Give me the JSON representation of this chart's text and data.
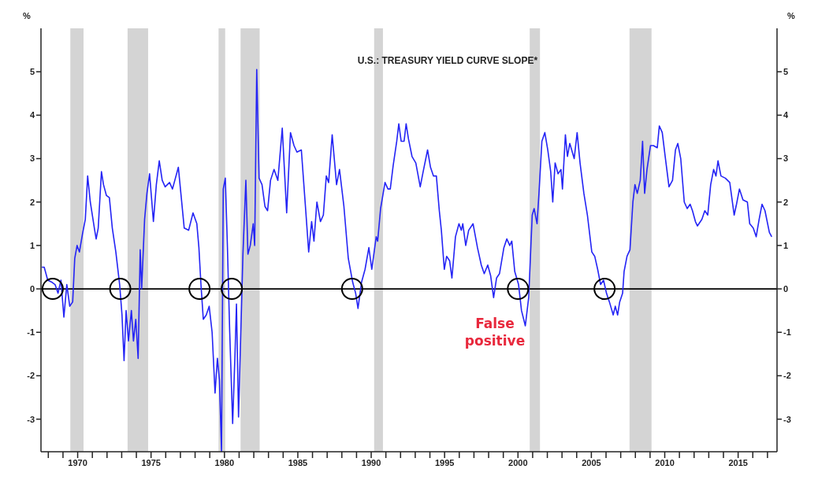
{
  "chart_data": {
    "type": "line",
    "title": "U.S.: TREASURY YIELD CURVE SLOPE*",
    "ylabel": "%",
    "y2label": "%",
    "xlim": [
      1967.5,
      2017.65
    ],
    "xticks": [
      {
        "value": 1968,
        "label": null
      },
      {
        "value": 1969,
        "label": null
      },
      1970,
      {
        "value": 1971,
        "label": null
      },
      {
        "value": 1972,
        "label": null
      },
      {
        "value": 1973,
        "label": null
      },
      {
        "value": 1974,
        "label": null
      },
      1975,
      {
        "value": 1976,
        "label": null
      },
      {
        "value": 1977,
        "label": null
      },
      {
        "value": 1978,
        "label": null
      },
      {
        "value": 1979,
        "label": null
      },
      1980,
      {
        "value": 1981,
        "label": null
      },
      {
        "value": 1982,
        "label": null
      },
      {
        "value": 1983,
        "label": null
      },
      {
        "value": 1984,
        "label": null
      },
      1985,
      {
        "value": 1986,
        "label": null
      },
      {
        "value": 1987,
        "label": null
      },
      {
        "value": 1988,
        "label": null
      },
      {
        "value": 1989,
        "label": null
      },
      1990,
      {
        "value": 1991,
        "label": null
      },
      {
        "value": 1992,
        "label": null
      },
      {
        "value": 1993,
        "label": null
      },
      {
        "value": 1994,
        "label": null
      },
      1995,
      {
        "value": 1996,
        "label": null
      },
      {
        "value": 1997,
        "label": null
      },
      {
        "value": 1998,
        "label": null
      },
      {
        "value": 1999,
        "label": null
      },
      2000,
      {
        "value": 2001,
        "label": null
      },
      {
        "value": 2002,
        "label": null
      },
      {
        "value": 2003,
        "label": null
      },
      {
        "value": 2004,
        "label": null
      },
      2005,
      {
        "value": 2006,
        "label": null
      },
      {
        "value": 2007,
        "label": null
      },
      {
        "value": 2008,
        "label": null
      },
      {
        "value": 2009,
        "label": null
      },
      2010,
      {
        "value": 2011,
        "label": null
      },
      {
        "value": 2012,
        "label": null
      },
      {
        "value": 2013,
        "label": null
      },
      {
        "value": 2014,
        "label": null
      },
      2015,
      {
        "value": 2016,
        "label": null
      },
      {
        "value": 2017,
        "label": null
      }
    ],
    "ylim": [
      -3.75,
      6
    ],
    "yticks": [
      -3,
      -2,
      -1,
      0,
      1,
      2,
      3,
      4,
      5
    ],
    "y2lim": [
      -3.75,
      6
    ],
    "y2ticks": [
      -3,
      -2,
      -1,
      0,
      1,
      2,
      3,
      4,
      5
    ],
    "series": [
      {
        "color": "#2424f5",
        "line_style": "solid",
        "x": [
          1967.56,
          1967.72,
          1967.96,
          1968.26,
          1968.46,
          1968.66,
          1968.86,
          1969.06,
          1969.26,
          1969.46,
          1969.66,
          1969.8,
          1969.96,
          1970.12,
          1970.32,
          1970.52,
          1970.68,
          1970.86,
          1971.16,
          1971.26,
          1971.4,
          1971.62,
          1971.76,
          1971.96,
          1972.16,
          1972.36,
          1972.6,
          1972.86,
          1973.02,
          1973.16,
          1973.3,
          1973.46,
          1973.66,
          1973.8,
          1973.96,
          1974.12,
          1974.26,
          1974.36,
          1974.56,
          1974.72,
          1974.9,
          1975.16,
          1975.36,
          1975.56,
          1975.76,
          1975.96,
          1976.26,
          1976.46,
          1976.86,
          1977.06,
          1977.26,
          1977.56,
          1977.86,
          1978.12,
          1978.26,
          1978.4,
          1978.56,
          1978.76,
          1978.96,
          1979.16,
          1979.36,
          1979.52,
          1979.66,
          1979.8,
          1979.92,
          1980.06,
          1980.2,
          1980.36,
          1980.56,
          1980.72,
          1980.82,
          1980.96,
          1981.1,
          1981.26,
          1981.46,
          1981.6,
          1981.76,
          1981.96,
          1982.06,
          1982.2,
          1982.36,
          1982.56,
          1982.76,
          1982.94,
          1983.14,
          1983.38,
          1983.64,
          1983.94,
          1984.24,
          1984.5,
          1984.74,
          1984.94,
          1985.24,
          1985.54,
          1985.74,
          1985.94,
          1986.1,
          1986.3,
          1986.54,
          1986.74,
          1986.94,
          1987.1,
          1987.34,
          1987.64,
          1987.84,
          1988.14,
          1988.44,
          1988.74,
          1988.94,
          1989.1,
          1989.34,
          1989.58,
          1989.84,
          1990.04,
          1990.34,
          1990.44,
          1990.64,
          1990.94,
          1991.14,
          1991.3,
          1991.5,
          1991.74,
          1991.88,
          1992.04,
          1992.24,
          1992.38,
          1992.54,
          1992.78,
          1993.04,
          1993.34,
          1993.54,
          1993.84,
          1994.04,
          1994.24,
          1994.44,
          1994.64,
          1994.78,
          1994.98,
          1995.14,
          1995.34,
          1995.5,
          1995.74,
          1995.98,
          1996.14,
          1996.24,
          1996.44,
          1996.64,
          1996.94,
          1997.24,
          1997.5,
          1997.7,
          1997.94,
          1998.14,
          1998.34,
          1998.54,
          1998.74,
          1999.04,
          1999.24,
          1999.44,
          1999.58,
          1999.78,
          2000.04,
          2000.24,
          2000.5,
          2000.73,
          2000.97,
          2001.1,
          2001.3,
          2001.43,
          2001.63,
          2001.83,
          2002.03,
          2002.23,
          2002.37,
          2002.53,
          2002.73,
          2002.93,
          2003.03,
          2003.23,
          2003.37,
          2003.53,
          2003.83,
          2004.03,
          2004.23,
          2004.49,
          2004.73,
          2005.03,
          2005.23,
          2005.43,
          2005.63,
          2005.83,
          2006.03,
          2006.23,
          2006.49,
          2006.63,
          2006.79,
          2006.93,
          2007.13,
          2007.23,
          2007.43,
          2007.63,
          2007.83,
          2007.97,
          2008.13,
          2008.33,
          2008.49,
          2008.63,
          2008.79,
          2009.03,
          2009.23,
          2009.49,
          2009.63,
          2009.83,
          2010.03,
          2010.29,
          2010.53,
          2010.73,
          2010.89,
          2011.09,
          2011.33,
          2011.53,
          2011.73,
          2011.89,
          2012.09,
          2012.23,
          2012.53,
          2012.73,
          2012.93,
          2013.13,
          2013.33,
          2013.49,
          2013.63,
          2013.83,
          2014.13,
          2014.43,
          2014.73,
          2014.89,
          2015.09,
          2015.33,
          2015.63,
          2015.79,
          2016.03,
          2016.23,
          2016.43,
          2016.63,
          2016.83,
          2017.13,
          2017.29
        ],
        "values": [
          0.5,
          0.5,
          0.2,
          0.15,
          0.1,
          -0.1,
          0.2,
          -0.65,
          0.1,
          -0.4,
          -0.3,
          0.7,
          1.0,
          0.85,
          1.25,
          1.6,
          2.6,
          2.0,
          1.35,
          1.15,
          1.4,
          2.7,
          2.4,
          2.15,
          2.1,
          1.4,
          0.85,
          0.1,
          -0.6,
          -1.65,
          -0.5,
          -1.2,
          -0.5,
          -1.2,
          -0.7,
          -1.6,
          0.9,
          0.0,
          1.6,
          2.2,
          2.65,
          1.55,
          2.4,
          2.95,
          2.5,
          2.35,
          2.45,
          2.3,
          2.8,
          2.1,
          1.4,
          1.35,
          1.75,
          1.5,
          0.95,
          0.1,
          -0.7,
          -0.6,
          -0.4,
          -1.0,
          -2.4,
          -1.6,
          -2.1,
          -3.75,
          2.3,
          2.55,
          1.0,
          -1.0,
          -3.1,
          -1.5,
          -0.35,
          -2.95,
          -1.2,
          0.8,
          2.5,
          0.8,
          1.0,
          1.5,
          1.0,
          5.05,
          2.55,
          2.4,
          1.9,
          1.8,
          2.5,
          2.75,
          2.5,
          3.7,
          1.75,
          3.6,
          3.3,
          3.15,
          3.2,
          1.8,
          0.85,
          1.55,
          1.1,
          2.0,
          1.55,
          1.7,
          2.6,
          2.45,
          3.55,
          2.4,
          2.75,
          1.9,
          0.7,
          0.15,
          -0.1,
          -0.45,
          0.15,
          0.45,
          0.95,
          0.45,
          1.2,
          1.1,
          1.85,
          2.45,
          2.3,
          2.3,
          2.85,
          3.4,
          3.8,
          3.4,
          3.4,
          3.8,
          3.45,
          3.05,
          2.9,
          2.35,
          2.7,
          3.2,
          2.8,
          2.6,
          2.6,
          1.8,
          1.35,
          0.45,
          0.75,
          0.65,
          0.25,
          1.2,
          1.5,
          1.35,
          1.5,
          1.0,
          1.35,
          1.5,
          0.95,
          0.55,
          0.35,
          0.55,
          0.3,
          -0.2,
          0.25,
          0.35,
          0.95,
          1.15,
          1.0,
          1.1,
          0.4,
          0.1,
          -0.5,
          -0.85,
          -0.2,
          1.7,
          1.85,
          1.5,
          2.2,
          3.4,
          3.6,
          3.2,
          2.7,
          2.0,
          2.9,
          2.65,
          2.75,
          2.3,
          3.55,
          3.05,
          3.35,
          3.0,
          3.6,
          2.9,
          2.2,
          1.7,
          0.85,
          0.75,
          0.45,
          0.1,
          0.2,
          -0.1,
          -0.3,
          -0.6,
          -0.4,
          -0.6,
          -0.3,
          -0.1,
          0.4,
          0.75,
          0.9,
          2.0,
          2.4,
          2.2,
          2.5,
          3.4,
          2.2,
          2.75,
          3.3,
          3.3,
          3.25,
          3.75,
          3.6,
          3.05,
          2.35,
          2.5,
          3.2,
          3.35,
          3.0,
          2.0,
          1.85,
          1.95,
          1.8,
          1.55,
          1.45,
          1.6,
          1.8,
          1.7,
          2.4,
          2.75,
          2.6,
          2.95,
          2.6,
          2.55,
          2.45,
          1.7,
          1.95,
          2.3,
          2.05,
          2.0,
          1.5,
          1.4,
          1.2,
          1.6,
          1.95,
          1.8,
          1.3,
          1.2
        ]
      },
      {
        "type": "scatter",
        "color": "#000000",
        "marker": "circle",
        "x": [
          1968.3,
          1972.9,
          1978.3,
          1980.5,
          1988.7,
          2000.0,
          2005.9
        ],
        "values": [
          0,
          0,
          0,
          0,
          0,
          0,
          0
        ]
      }
    ],
    "ref_lines": [
      {
        "axis": "y",
        "value": 0,
        "color": "#000000",
        "line_style": "solid"
      }
    ],
    "bands": [
      {
        "axis": "x",
        "from": 1969.5,
        "to": 1970.4,
        "color": "#d4d4d4"
      },
      {
        "axis": "x",
        "from": 1973.4,
        "to": 1974.8,
        "color": "#d4d4d4"
      },
      {
        "axis": "x",
        "from": 1979.6,
        "to": 1980.05,
        "color": "#d4d4d4"
      },
      {
        "axis": "x",
        "from": 1981.1,
        "to": 1982.4,
        "color": "#d4d4d4"
      },
      {
        "axis": "x",
        "from": 1990.2,
        "to": 1990.8,
        "color": "#d4d4d4"
      },
      {
        "axis": "x",
        "from": 2000.8,
        "to": 2001.5,
        "color": "#d4d4d4"
      },
      {
        "axis": "x",
        "from": 2007.6,
        "to": 2009.1,
        "color": "#d4d4d4"
      }
    ],
    "annotations": [
      "False positive"
    ]
  }
}
